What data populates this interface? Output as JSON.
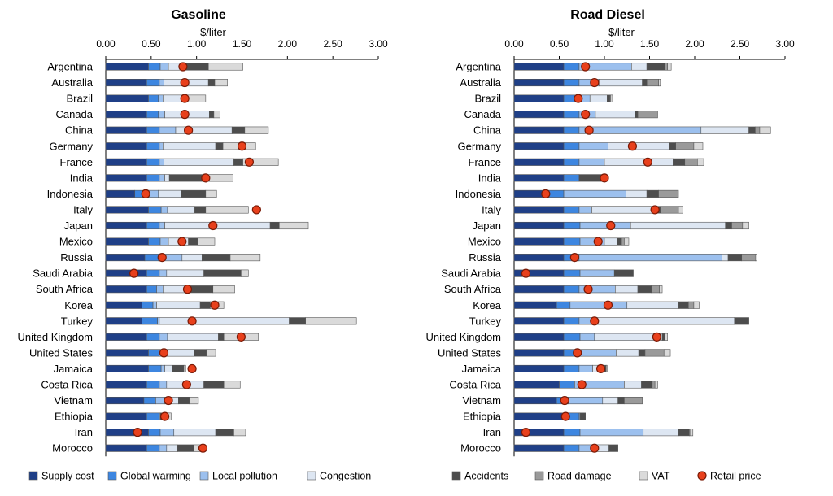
{
  "colors": {
    "supply": "#1f3f87",
    "global_warming": "#3d86e0",
    "local_pollution": "#9cc0ee",
    "congestion": "#dde6f2",
    "accidents": "#4d4d4d",
    "road_damage": "#9a9a9a",
    "vat": "#dadada",
    "retail": "#e8401c"
  },
  "legend": [
    {
      "key": "supply",
      "label": "Supply cost",
      "shape": "square"
    },
    {
      "key": "global_warming",
      "label": "Global warming",
      "shape": "square"
    },
    {
      "key": "local_pollution",
      "label": "Local pollution",
      "shape": "square"
    },
    {
      "key": "congestion",
      "label": "Congestion",
      "shape": "square"
    },
    {
      "key": "accidents",
      "label": "Accidents",
      "shape": "square"
    },
    {
      "key": "road_damage",
      "label": "Road damage",
      "shape": "square"
    },
    {
      "key": "vat",
      "label": "VAT",
      "shape": "square"
    },
    {
      "key": "retail",
      "label": "Retail price",
      "shape": "circle"
    }
  ],
  "chart_data": [
    {
      "type": "bar",
      "orientation": "horizontal-stacked",
      "title": "Gasoline",
      "xlabel": "$/liter",
      "xlim": [
        0,
        3
      ],
      "xticks": [
        "0.00",
        "0.50",
        "1.00",
        "1.50",
        "2.00",
        "2.50",
        "3.00"
      ],
      "grid": false,
      "legend_position": "bottom",
      "categories": [
        "Argentina",
        "Australia",
        "Brazil",
        "Canada",
        "China",
        "Germany",
        "France",
        "India",
        "Indonesia",
        "Italy",
        "Japan",
        "Mexico",
        "Russia",
        "Saudi Arabia",
        "South Africa",
        "Korea",
        "Turkey",
        "United Kingdom",
        "United States",
        "Jamaica",
        "Costa Rica",
        "Vietnam",
        "Ethiopia",
        "Iran",
        "Morocco"
      ],
      "series": [
        {
          "name": "Supply cost",
          "color_key": "supply",
          "values": [
            0.47,
            0.45,
            0.47,
            0.45,
            0.45,
            0.45,
            0.45,
            0.45,
            0.32,
            0.47,
            0.45,
            0.47,
            0.43,
            0.45,
            0.45,
            0.4,
            0.4,
            0.45,
            0.47,
            0.47,
            0.45,
            0.42,
            0.45,
            0.47,
            0.45
          ]
        },
        {
          "name": "Global warming",
          "color_key": "global_warming",
          "values": [
            0.13,
            0.14,
            0.11,
            0.13,
            0.14,
            0.14,
            0.14,
            0.14,
            0.14,
            0.14,
            0.14,
            0.13,
            0.15,
            0.14,
            0.11,
            0.12,
            0.17,
            0.14,
            0.12,
            0.14,
            0.14,
            0.13,
            0.14,
            0.13,
            0.14
          ]
        },
        {
          "name": "Local pollution",
          "color_key": "local_pollution",
          "values": [
            0.09,
            0.05,
            0.05,
            0.07,
            0.18,
            0.04,
            0.05,
            0.06,
            0.12,
            0.07,
            0.06,
            0.09,
            0.26,
            0.08,
            0.07,
            0.04,
            0.02,
            0.09,
            0.08,
            0.04,
            0.08,
            0.1,
            0.01,
            0.15,
            0.08
          ]
        },
        {
          "name": "Congestion",
          "color_key": "congestion",
          "values": [
            0.16,
            0.49,
            0.23,
            0.49,
            0.62,
            0.58,
            0.77,
            0.05,
            0.25,
            0.3,
            1.16,
            0.22,
            0.22,
            0.41,
            0.29,
            0.48,
            1.43,
            0.56,
            0.3,
            0.08,
            0.41,
            0.15,
            0.0,
            0.46,
            0.12
          ]
        },
        {
          "name": "Accidents",
          "color_key": "accidents",
          "values": [
            0.28,
            0.07,
            0.02,
            0.05,
            0.14,
            0.08,
            0.1,
            0.42,
            0.27,
            0.12,
            0.1,
            0.1,
            0.31,
            0.41,
            0.26,
            0.11,
            0.18,
            0.06,
            0.14,
            0.13,
            0.22,
            0.12,
            0.04,
            0.2,
            0.18
          ]
        },
        {
          "name": "Road damage",
          "color_key": "road_damage",
          "values": [
            0.0,
            0.0,
            0.0,
            0.0,
            0.0,
            0.0,
            0.0,
            0.0,
            0.0,
            0.0,
            0.0,
            0.0,
            0.0,
            0.0,
            0.0,
            0.0,
            0.0,
            0.0,
            0.0,
            0.0,
            0.0,
            0.0,
            0.0,
            0.0,
            0.0
          ]
        },
        {
          "name": "VAT",
          "color_key": "vat",
          "values": [
            0.38,
            0.14,
            0.22,
            0.07,
            0.26,
            0.36,
            0.39,
            0.28,
            0.12,
            0.47,
            0.32,
            0.19,
            0.33,
            0.08,
            0.24,
            0.15,
            0.56,
            0.38,
            0.1,
            0.02,
            0.18,
            0.1,
            0.08,
            0.13,
            0.12
          ]
        }
      ],
      "retail_price": {
        "name": "Retail price",
        "values": [
          0.85,
          0.87,
          0.87,
          0.87,
          0.91,
          1.5,
          1.58,
          1.1,
          0.44,
          1.66,
          1.18,
          0.84,
          0.62,
          0.31,
          0.9,
          1.2,
          0.95,
          1.49,
          0.64,
          0.95,
          0.89,
          0.69,
          0.65,
          0.35,
          1.07
        ]
      }
    },
    {
      "type": "bar",
      "orientation": "horizontal-stacked",
      "title": "Road Diesel",
      "xlabel": "$/liter",
      "xlim": [
        0,
        3
      ],
      "xticks": [
        "0.00",
        "0.50",
        "1.00",
        "1.50",
        "2.00",
        "2.50",
        "3.00"
      ],
      "grid": false,
      "legend_position": "bottom",
      "categories": [
        "Argentina",
        "Australia",
        "Brazil",
        "Canada",
        "China",
        "Germany",
        "France",
        "India",
        "Indonesia",
        "Italy",
        "Japan",
        "Mexico",
        "Russia",
        "Saudi Arabia",
        "South Africa",
        "Korea",
        "Turkey",
        "United Kingdom",
        "United States",
        "Jamaica",
        "Costa Rica",
        "Vietnam",
        "Ethiopia",
        "Iran",
        "Morocco"
      ],
      "series": [
        {
          "name": "Supply cost",
          "color_key": "supply",
          "values": [
            0.55,
            0.55,
            0.55,
            0.55,
            0.55,
            0.55,
            0.55,
            0.55,
            0.35,
            0.55,
            0.55,
            0.55,
            0.55,
            0.55,
            0.55,
            0.47,
            0.55,
            0.55,
            0.55,
            0.55,
            0.5,
            0.47,
            0.55,
            0.55,
            0.55
          ]
        },
        {
          "name": "Global warming",
          "color_key": "global_warming",
          "values": [
            0.17,
            0.17,
            0.15,
            0.17,
            0.17,
            0.17,
            0.17,
            0.17,
            0.2,
            0.17,
            0.18,
            0.18,
            0.17,
            0.18,
            0.17,
            0.15,
            0.17,
            0.18,
            0.15,
            0.17,
            0.17,
            0.13,
            0.17,
            0.18,
            0.17
          ]
        },
        {
          "name": "Local pollution",
          "color_key": "local_pollution",
          "values": [
            0.58,
            0.22,
            0.14,
            0.18,
            1.35,
            0.32,
            0.28,
            0.0,
            0.69,
            0.14,
            0.56,
            0.27,
            1.58,
            0.38,
            0.4,
            0.63,
            0.2,
            0.16,
            0.43,
            0.15,
            0.55,
            0.38,
            0.01,
            0.7,
            0.19
          ]
        },
        {
          "name": "Congestion",
          "color_key": "congestion",
          "values": [
            0.17,
            0.48,
            0.19,
            0.44,
            0.53,
            0.68,
            0.76,
            0.0,
            0.23,
            0.72,
            1.05,
            0.14,
            0.07,
            0.0,
            0.25,
            0.57,
            1.52,
            0.75,
            0.25,
            0.1,
            0.19,
            0.17,
            0.0,
            0.39,
            0.14
          ]
        },
        {
          "name": "Accidents",
          "color_key": "accidents",
          "values": [
            0.2,
            0.05,
            0.03,
            0.03,
            0.07,
            0.07,
            0.13,
            0.27,
            0.13,
            0.04,
            0.07,
            0.05,
            0.15,
            0.21,
            0.15,
            0.11,
            0.16,
            0.03,
            0.07,
            0.05,
            0.12,
            0.07,
            0.06,
            0.12,
            0.1
          ]
        },
        {
          "name": "Road damage",
          "color_key": "road_damage",
          "values": [
            0.03,
            0.13,
            0.01,
            0.22,
            0.05,
            0.2,
            0.14,
            0.0,
            0.22,
            0.2,
            0.12,
            0.03,
            0.15,
            0.0,
            0.09,
            0.06,
            0.0,
            0.0,
            0.21,
            0.0,
            0.03,
            0.2,
            0.0,
            0.02,
            0.0
          ]
        },
        {
          "name": "VAT",
          "color_key": "vat",
          "values": [
            0.04,
            0.02,
            0.02,
            0.0,
            0.12,
            0.1,
            0.07,
            0.01,
            0.0,
            0.05,
            0.07,
            0.05,
            0.02,
            0.0,
            0.03,
            0.06,
            0.0,
            0.03,
            0.07,
            0.01,
            0.03,
            0.0,
            0.0,
            0.02,
            0.0
          ]
        }
      ],
      "retail_price": {
        "name": "Retail price",
        "values": [
          0.79,
          0.89,
          0.71,
          0.79,
          0.83,
          1.31,
          1.48,
          1.0,
          0.35,
          1.56,
          1.07,
          0.93,
          0.67,
          0.13,
          0.82,
          1.04,
          0.89,
          1.58,
          0.7,
          0.96,
          0.75,
          0.56,
          0.57,
          0.13,
          0.89
        ]
      }
    }
  ]
}
